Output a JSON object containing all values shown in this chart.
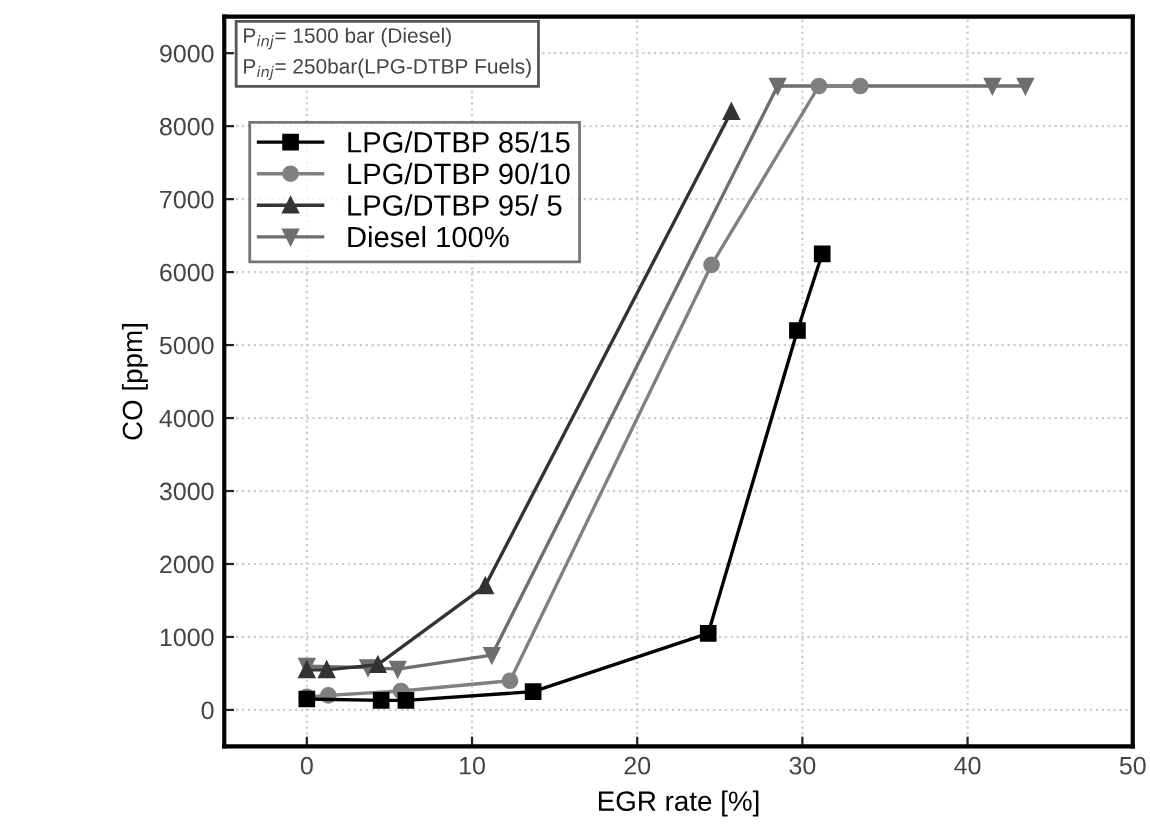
{
  "chart_data": {
    "type": "line",
    "xlabel": "EGR rate [%]",
    "ylabel": "CO [ppm]",
    "annotations": [
      "P$_{inj}$= 1500 bar (Diesel)",
      "P$_{inj}$= 250bar(LPG-DTBP Fuels)"
    ],
    "xlim": [
      -5,
      50
    ],
    "xticks": [
      0,
      10,
      20,
      30,
      40,
      50
    ],
    "ylim": [
      -500,
      9500
    ],
    "yticks": [
      0,
      1000,
      2000,
      3000,
      4000,
      5000,
      6000,
      7000,
      8000,
      9000
    ],
    "grid": true,
    "legend": "top left",
    "series": [
      {
        "name": "LPG/DTBP 85/15",
        "color": "#000000",
        "marker": "square",
        "x": [
          0,
          4.5,
          6,
          13.7,
          24.3,
          29.7,
          31.2
        ],
        "values": [
          150,
          130,
          130,
          250,
          1050,
          5200,
          6250
        ]
      },
      {
        "name": "LPG/DTBP 90/10",
        "color": "#808080",
        "marker": "circle",
        "x": [
          0,
          1.3,
          5.7,
          12.3,
          24.5,
          31,
          33.5
        ],
        "values": [
          180,
          200,
          260,
          400,
          6100,
          8550,
          8550
        ]
      },
      {
        "name": "LPG/DTBP 95/ 5",
        "color": "#333333",
        "marker": "triangle",
        "x": [
          0,
          1.2,
          4.3,
          10.8,
          25.7
        ],
        "values": [
          550,
          550,
          620,
          1700,
          8200
        ]
      },
      {
        "name": "Diesel 100%",
        "color": "#6e6e6e",
        "marker": "triangle_down",
        "x": [
          0,
          3.7,
          5.5,
          11.2,
          28.5,
          41.5,
          43.5
        ],
        "values": [
          600,
          580,
          560,
          750,
          8550,
          8550,
          8550
        ]
      }
    ]
  }
}
